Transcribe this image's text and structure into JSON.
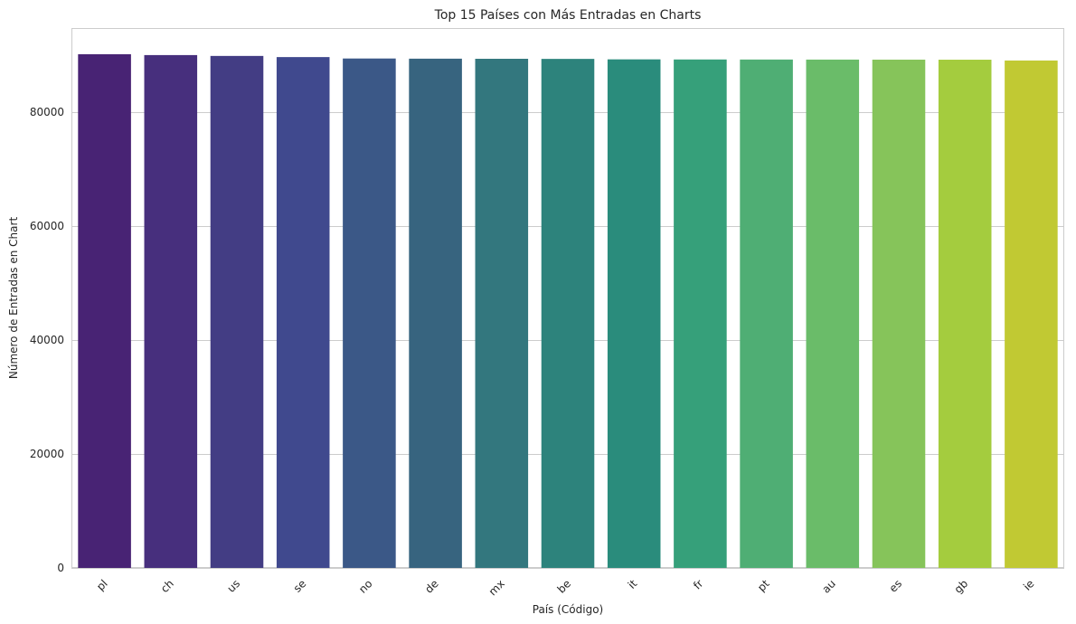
{
  "chart_data": {
    "type": "bar",
    "title": "Top 15 Países con Más Entradas en Charts",
    "xlabel": "País (Código)",
    "ylabel": "Número de Entradas en Chart",
    "categories": [
      "pl",
      "ch",
      "us",
      "se",
      "no",
      "de",
      "mx",
      "be",
      "it",
      "fr",
      "pt",
      "au",
      "es",
      "gb",
      "ie"
    ],
    "values": [
      90200,
      90050,
      89900,
      89700,
      89450,
      89420,
      89400,
      89380,
      89300,
      89280,
      89270,
      89260,
      89250,
      89240,
      89100
    ],
    "colors": [
      "#482374",
      "#472f7d",
      "#433d84",
      "#40498e",
      "#3b5887",
      "#37647f",
      "#33777e",
      "#2d837c",
      "#2a8c7c",
      "#36a07a",
      "#4fae74",
      "#6abc69",
      "#86c45a",
      "#a4cc3e",
      "#c1c933"
    ],
    "yticks": [
      0,
      20000,
      40000,
      60000,
      80000
    ],
    "ylim": [
      0,
      94800
    ],
    "grid": "y"
  }
}
